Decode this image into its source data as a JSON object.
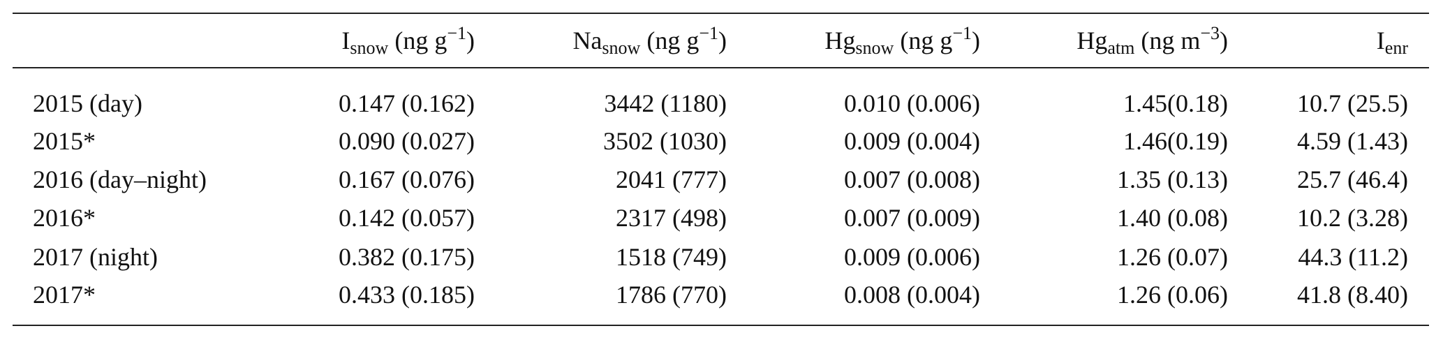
{
  "table": {
    "header": [
      {
        "base": "I",
        "sub": "snow",
        "unit": "(ng g",
        "sup": "−1",
        "close": ")"
      },
      {
        "base": "Na",
        "sub": "snow",
        "unit": "(ng g",
        "sup": "−1",
        "close": ")"
      },
      {
        "base": "Hg",
        "sub": "snow",
        "unit": "(ng g",
        "sup": "−1",
        "close": ")"
      },
      {
        "base": "Hg",
        "sub": "atm",
        "unit": "(ng m",
        "sup": "−3",
        "close": ")"
      },
      {
        "base": "I",
        "sub": "enr"
      }
    ],
    "rows": [
      [
        "2015 (day)",
        "0.147 (0.162)",
        "3442 (1180)",
        "0.010 (0.006)",
        "1.45(0.18)",
        "10.7 (25.5)"
      ],
      [
        "2015*",
        "0.090 (0.027)",
        "3502 (1030)",
        "0.009 (0.004)",
        "1.46(0.19)",
        "4.59 (1.43)"
      ],
      [
        "2016 (day–night)",
        "0.167 (0.076)",
        "2041 (777)",
        "0.007 (0.008)",
        "1.35 (0.13)",
        "25.7 (46.4)"
      ],
      [
        "2016*",
        "0.142 (0.057)",
        "2317 (498)",
        "0.007 (0.009)",
        "1.40 (0.08)",
        "10.2 (3.28)"
      ],
      [
        "2017 (night)",
        "0.382 (0.175)",
        "1518 (749)",
        "0.009 (0.006)",
        "1.26 (0.07)",
        "44.3 (11.2)"
      ],
      [
        "2017*",
        "0.433 (0.185)",
        "1786 (770)",
        "0.008 (0.004)",
        "1.26 (0.06)",
        "41.8 (8.40)"
      ]
    ]
  }
}
